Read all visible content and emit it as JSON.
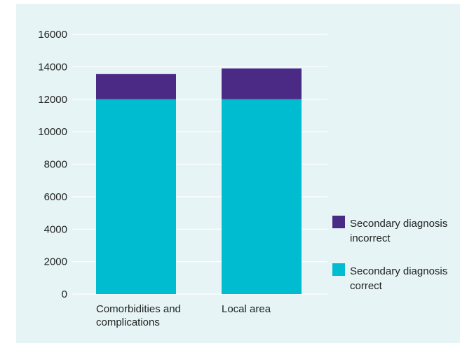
{
  "chart_data": {
    "type": "bar",
    "stacked": true,
    "categories": [
      [
        "Comorbidities and",
        "complications"
      ],
      [
        "Local area"
      ]
    ],
    "series": [
      {
        "name": [
          "Secondary diagnosis",
          "correct"
        ],
        "values": [
          12000,
          12000
        ],
        "color": "#00bcd0"
      },
      {
        "name": [
          "Secondary diagnosis",
          "incorrect"
        ],
        "values": [
          1550,
          1900
        ],
        "color": "#4a2a85"
      }
    ],
    "yticks": [
      "0",
      "2000",
      "4000",
      "6000",
      "8000",
      "10000",
      "12000",
      "14000",
      "16000"
    ],
    "ylim": [
      0,
      16000
    ],
    "grid": true,
    "legend": "right"
  }
}
